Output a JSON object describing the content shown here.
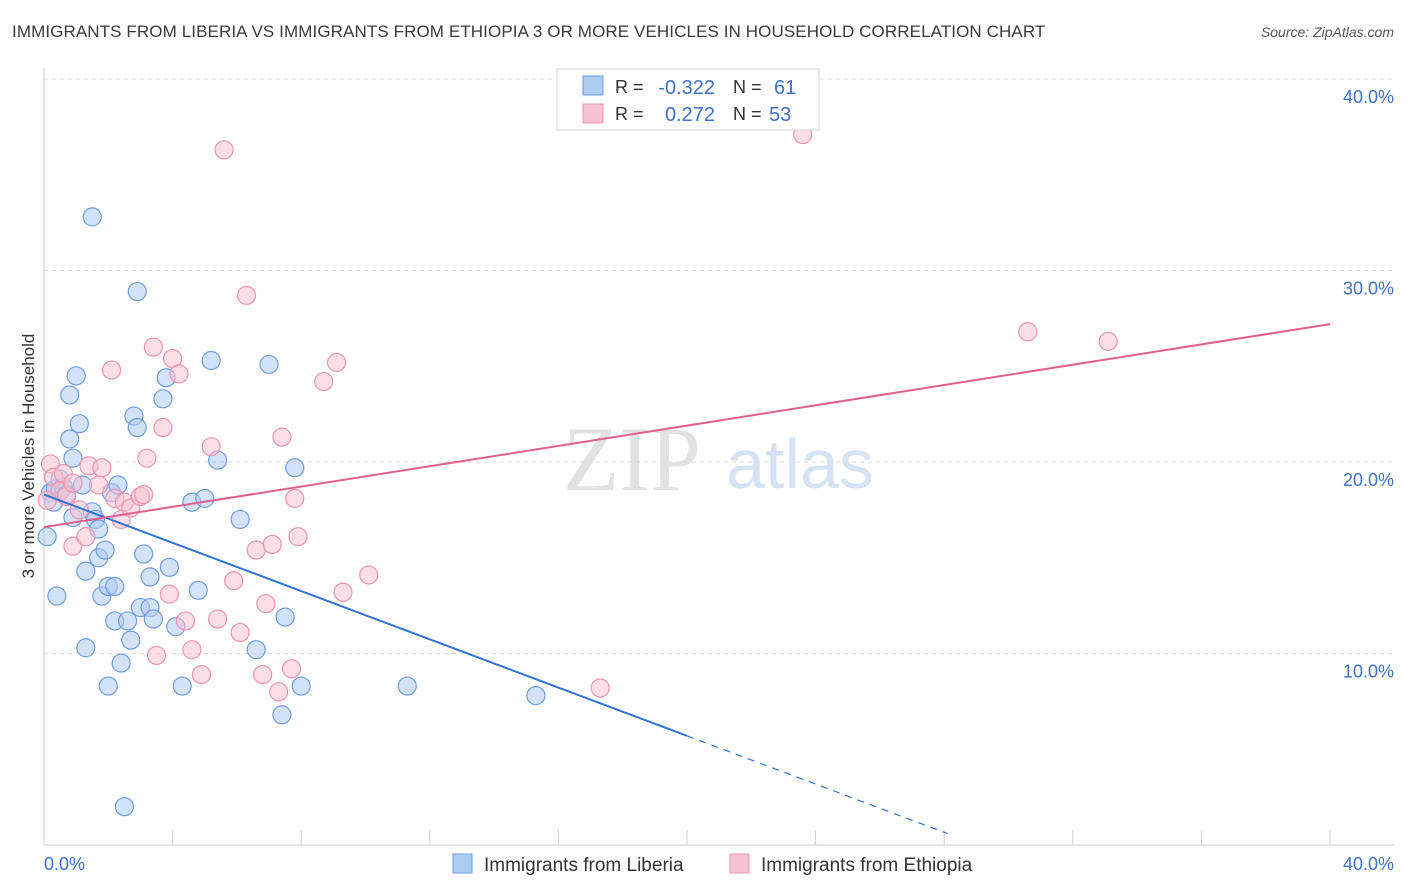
{
  "title": "IMMIGRANTS FROM LIBERIA VS IMMIGRANTS FROM ETHIOPIA 3 OR MORE VEHICLES IN HOUSEHOLD CORRELATION CHART",
  "source": "Source: ZipAtlas.com",
  "watermark": {
    "zip": "ZIP",
    "atlas": "atlas"
  },
  "colors": {
    "liberia_fill": "#aecbf0",
    "liberia_stroke": "#6d9ee0",
    "liberia_line": "#2e74d0",
    "ethiopia_fill": "#f7c2d2",
    "ethiopia_stroke": "#ec94b2",
    "ethiopia_line": "#e0608c",
    "tick_text": "#3d72c9",
    "grid": "#dddddd"
  },
  "legend": {
    "rows": [
      {
        "r_label": "R =",
        "r_value": "-0.322",
        "n_label": "N =",
        "n_value": "61"
      },
      {
        "r_label": "R =",
        "r_value": "0.272",
        "n_label": "N =",
        "n_value": "53"
      }
    ]
  },
  "chart_data": {
    "type": "scatter",
    "title": "IMMIGRANTS FROM LIBERIA VS IMMIGRANTS FROM ETHIOPIA 3 OR MORE VEHICLES IN HOUSEHOLD CORRELATION CHART",
    "xlabel": "",
    "ylabel": "3 or more Vehicles in Household",
    "xlim": [
      0,
      40
    ],
    "ylim": [
      0,
      40
    ],
    "x_tick_labels": [
      "0.0%",
      "40.0%"
    ],
    "y_ticks": [
      10,
      20,
      30,
      40
    ],
    "y_tick_labels": [
      "10.0%",
      "20.0%",
      "30.0%",
      "40.0%"
    ],
    "series": [
      {
        "name": "Immigrants from Liberia",
        "r": -0.322,
        "n": 61,
        "trend": {
          "x0": 0,
          "y0": 18.3,
          "x1": 20,
          "y1": 5.7,
          "dash_x1": 28.1,
          "dash_y1": 0.6
        },
        "points": [
          [
            0.1,
            16.1
          ],
          [
            0.2,
            18.4
          ],
          [
            0.3,
            17.9
          ],
          [
            0.35,
            18.6
          ],
          [
            0.4,
            13.0
          ],
          [
            0.5,
            19.1
          ],
          [
            0.6,
            18.7
          ],
          [
            0.7,
            18.3
          ],
          [
            0.8,
            21.2
          ],
          [
            0.8,
            23.5
          ],
          [
            0.9,
            20.2
          ],
          [
            0.9,
            17.1
          ],
          [
            1.0,
            24.5
          ],
          [
            1.1,
            22.0
          ],
          [
            1.2,
            18.8
          ],
          [
            1.3,
            10.3
          ],
          [
            1.3,
            14.3
          ],
          [
            1.5,
            32.8
          ],
          [
            1.5,
            17.4
          ],
          [
            1.6,
            17.0
          ],
          [
            1.7,
            16.5
          ],
          [
            1.7,
            15.0
          ],
          [
            1.8,
            13.0
          ],
          [
            1.9,
            15.4
          ],
          [
            2.0,
            13.5
          ],
          [
            2.1,
            18.4
          ],
          [
            2.2,
            11.7
          ],
          [
            2.2,
            13.5
          ],
          [
            2.3,
            18.8
          ],
          [
            2.4,
            9.5
          ],
          [
            2.5,
            2.0
          ],
          [
            2.6,
            11.7
          ],
          [
            2.7,
            10.7
          ],
          [
            2.8,
            22.4
          ],
          [
            2.9,
            28.9
          ],
          [
            2.9,
            21.8
          ],
          [
            3.0,
            12.4
          ],
          [
            3.1,
            15.2
          ],
          [
            3.3,
            12.4
          ],
          [
            3.3,
            14.0
          ],
          [
            3.4,
            11.8
          ],
          [
            3.7,
            23.3
          ],
          [
            3.8,
            24.4
          ],
          [
            3.9,
            14.5
          ],
          [
            4.1,
            11.4
          ],
          [
            4.3,
            8.3
          ],
          [
            4.6,
            17.9
          ],
          [
            4.8,
            13.3
          ],
          [
            5.0,
            18.1
          ],
          [
            5.2,
            25.3
          ],
          [
            5.4,
            20.1
          ],
          [
            6.1,
            17.0
          ],
          [
            6.6,
            10.2
          ],
          [
            7.0,
            25.1
          ],
          [
            7.4,
            6.8
          ],
          [
            7.5,
            11.9
          ],
          [
            7.8,
            19.7
          ],
          [
            8.0,
            8.3
          ],
          [
            11.3,
            8.3
          ],
          [
            15.3,
            7.8
          ],
          [
            2.0,
            8.3
          ]
        ]
      },
      {
        "name": "Immigrants from Ethiopia",
        "r": 0.272,
        "n": 53,
        "trend": {
          "x0": 0,
          "y0": 16.6,
          "x1": 40,
          "y1": 27.2
        },
        "points": [
          [
            0.2,
            19.9
          ],
          [
            0.3,
            19.2
          ],
          [
            0.5,
            18.5
          ],
          [
            0.7,
            18.2
          ],
          [
            0.9,
            15.6
          ],
          [
            1.1,
            17.5
          ],
          [
            1.3,
            16.1
          ],
          [
            1.4,
            19.8
          ],
          [
            1.7,
            18.8
          ],
          [
            1.8,
            19.7
          ],
          [
            2.1,
            24.8
          ],
          [
            2.2,
            18.1
          ],
          [
            2.4,
            17.0
          ],
          [
            2.5,
            17.9
          ],
          [
            2.7,
            17.6
          ],
          [
            3.0,
            18.2
          ],
          [
            3.1,
            18.3
          ],
          [
            3.2,
            20.2
          ],
          [
            3.4,
            26.0
          ],
          [
            3.5,
            9.9
          ],
          [
            3.7,
            21.8
          ],
          [
            3.9,
            13.1
          ],
          [
            4.0,
            25.4
          ],
          [
            4.2,
            24.6
          ],
          [
            4.4,
            11.7
          ],
          [
            4.6,
            10.2
          ],
          [
            4.9,
            8.9
          ],
          [
            5.2,
            20.8
          ],
          [
            5.4,
            11.8
          ],
          [
            5.6,
            36.3
          ],
          [
            5.9,
            13.8
          ],
          [
            6.1,
            11.1
          ],
          [
            6.3,
            28.7
          ],
          [
            6.6,
            15.4
          ],
          [
            6.8,
            8.9
          ],
          [
            6.9,
            12.6
          ],
          [
            7.1,
            15.7
          ],
          [
            7.3,
            8.0
          ],
          [
            7.4,
            21.3
          ],
          [
            7.7,
            9.2
          ],
          [
            7.8,
            18.1
          ],
          [
            7.9,
            16.1
          ],
          [
            8.7,
            24.2
          ],
          [
            9.1,
            25.2
          ],
          [
            9.3,
            13.2
          ],
          [
            10.1,
            14.1
          ],
          [
            17.3,
            8.2
          ],
          [
            23.6,
            37.1
          ],
          [
            30.6,
            26.8
          ],
          [
            33.1,
            26.3
          ],
          [
            0.1,
            18.0
          ],
          [
            0.6,
            19.4
          ],
          [
            0.9,
            18.9
          ]
        ]
      }
    ]
  }
}
